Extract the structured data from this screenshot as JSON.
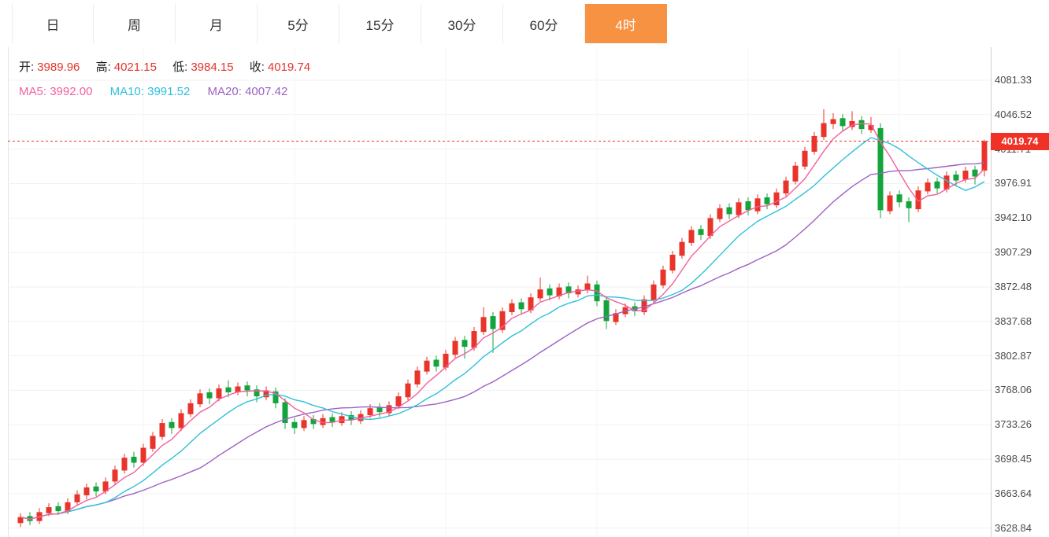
{
  "tabbar": {
    "tabs": [
      {
        "label": "日"
      },
      {
        "label": "周"
      },
      {
        "label": "月"
      },
      {
        "label": "5分"
      },
      {
        "label": "15分"
      },
      {
        "label": "30分"
      },
      {
        "label": "60分"
      },
      {
        "label": "4时"
      }
    ],
    "active": "4时"
  },
  "legend": {
    "ohlc": [
      {
        "label": "开:",
        "value": "3989.96"
      },
      {
        "label": "高:",
        "value": "4021.15"
      },
      {
        "label": "低:",
        "value": "3984.15"
      },
      {
        "label": "收:",
        "value": "4019.74"
      }
    ],
    "ma": [
      {
        "label": "MA5:",
        "value": "3992.00"
      },
      {
        "label": "MA10:",
        "value": "3991.52"
      },
      {
        "label": "MA20:",
        "value": "4007.42"
      }
    ]
  },
  "price_tag": {
    "value": "4019.74"
  },
  "chart_data": {
    "type": "candlestick",
    "timeframe": "4时",
    "up_color": "#e8342a",
    "down_color": "#14a43c",
    "tag_color": "#f03126",
    "grid": true,
    "legend_position": "top-left",
    "ohlc_latest": {
      "open": 3989.96,
      "high": 4021.15,
      "low": 3984.15,
      "close": 4019.74
    },
    "ma_values": {
      "MA5": 3992.0,
      "MA10": 3991.52,
      "MA20": 4007.42
    },
    "ma_colors": {
      "ma5": "#f0609d",
      "ma10": "#2fc0d9",
      "ma20": "#9d62c4"
    },
    "last_price": 4019.74,
    "y_ticks": [
      4081.33,
      4046.52,
      4011.71,
      3976.91,
      3942.1,
      3907.29,
      3872.48,
      3837.68,
      3802.87,
      3768.06,
      3733.26,
      3698.45,
      3663.64,
      3628.84
    ],
    "candles": [
      [
        3634,
        3644,
        3630,
        3640
      ],
      [
        3641,
        3645,
        3632,
        3636
      ],
      [
        3636,
        3649,
        3633,
        3645
      ],
      [
        3644,
        3654,
        3641,
        3650
      ],
      [
        3651,
        3655,
        3642,
        3646
      ],
      [
        3646,
        3659,
        3643,
        3655
      ],
      [
        3655,
        3667,
        3652,
        3663
      ],
      [
        3662,
        3674,
        3658,
        3670
      ],
      [
        3671,
        3675,
        3661,
        3666
      ],
      [
        3666,
        3680,
        3663,
        3676
      ],
      [
        3676,
        3692,
        3673,
        3688
      ],
      [
        3687,
        3704,
        3684,
        3700
      ],
      [
        3701,
        3706,
        3690,
        3695
      ],
      [
        3695,
        3714,
        3692,
        3710
      ],
      [
        3709,
        3726,
        3706,
        3722
      ],
      [
        3721,
        3739,
        3718,
        3735
      ],
      [
        3736,
        3740,
        3724,
        3730
      ],
      [
        3730,
        3749,
        3727,
        3745
      ],
      [
        3744,
        3759,
        3741,
        3755
      ],
      [
        3754,
        3769,
        3751,
        3765
      ],
      [
        3766,
        3770,
        3754,
        3760
      ],
      [
        3760,
        3774,
        3757,
        3770
      ],
      [
        3771,
        3778,
        3761,
        3766
      ],
      [
        3766,
        3776,
        3763,
        3772
      ],
      [
        3773,
        3777,
        3762,
        3768
      ],
      [
        3769,
        3773,
        3756,
        3762
      ],
      [
        3761,
        3772,
        3758,
        3768
      ],
      [
        3767,
        3771,
        3750,
        3755
      ],
      [
        3756,
        3760,
        3729,
        3735
      ],
      [
        3736,
        3740,
        3724,
        3730
      ],
      [
        3730,
        3742,
        3727,
        3738
      ],
      [
        3739,
        3743,
        3729,
        3734
      ],
      [
        3733,
        3744,
        3730,
        3740
      ],
      [
        3741,
        3745,
        3731,
        3736
      ],
      [
        3735,
        3746,
        3732,
        3742
      ],
      [
        3743,
        3747,
        3733,
        3738
      ],
      [
        3737,
        3748,
        3734,
        3744
      ],
      [
        3743,
        3754,
        3740,
        3750
      ],
      [
        3751,
        3755,
        3741,
        3746
      ],
      [
        3745,
        3757,
        3742,
        3753
      ],
      [
        3752,
        3766,
        3749,
        3762
      ],
      [
        3761,
        3779,
        3758,
        3775
      ],
      [
        3774,
        3792,
        3771,
        3788
      ],
      [
        3787,
        3802,
        3784,
        3798
      ],
      [
        3799,
        3803,
        3787,
        3792
      ],
      [
        3791,
        3809,
        3788,
        3805
      ],
      [
        3804,
        3822,
        3801,
        3818
      ],
      [
        3819,
        3823,
        3800,
        3812
      ],
      [
        3811,
        3832,
        3808,
        3828
      ],
      [
        3827,
        3852,
        3824,
        3842
      ],
      [
        3843,
        3847,
        3806,
        3830
      ],
      [
        3829,
        3852,
        3826,
        3848
      ],
      [
        3847,
        3860,
        3844,
        3856
      ],
      [
        3857,
        3861,
        3845,
        3850
      ],
      [
        3849,
        3866,
        3846,
        3862
      ],
      [
        3861,
        3882,
        3858,
        3870
      ],
      [
        3871,
        3875,
        3859,
        3864
      ],
      [
        3863,
        3876,
        3860,
        3872
      ],
      [
        3873,
        3877,
        3861,
        3866
      ],
      [
        3865,
        3874,
        3862,
        3870
      ],
      [
        3869,
        3884,
        3866,
        3876
      ],
      [
        3875,
        3879,
        3853,
        3858
      ],
      [
        3859,
        3863,
        3830,
        3838
      ],
      [
        3837,
        3850,
        3834,
        3846
      ],
      [
        3845,
        3856,
        3842,
        3852
      ],
      [
        3853,
        3857,
        3843,
        3848
      ],
      [
        3847,
        3864,
        3844,
        3860
      ],
      [
        3859,
        3879,
        3856,
        3875
      ],
      [
        3874,
        3894,
        3871,
        3890
      ],
      [
        3889,
        3909,
        3886,
        3905
      ],
      [
        3904,
        3922,
        3901,
        3918
      ],
      [
        3917,
        3934,
        3914,
        3930
      ],
      [
        3931,
        3935,
        3920,
        3925
      ],
      [
        3924,
        3946,
        3921,
        3942
      ],
      [
        3941,
        3956,
        3938,
        3952
      ],
      [
        3953,
        3957,
        3941,
        3946
      ],
      [
        3945,
        3962,
        3942,
        3958
      ],
      [
        3959,
        3963,
        3945,
        3950
      ],
      [
        3949,
        3966,
        3946,
        3962
      ],
      [
        3963,
        3967,
        3951,
        3956
      ],
      [
        3955,
        3972,
        3952,
        3968
      ],
      [
        3967,
        3984,
        3964,
        3980
      ],
      [
        3979,
        3999,
        3976,
        3995
      ],
      [
        3994,
        4014,
        3991,
        4010
      ],
      [
        4009,
        4029,
        4006,
        4025
      ],
      [
        4024,
        4052,
        4021,
        4038
      ],
      [
        4037,
        4048,
        4032,
        4042
      ],
      [
        4043,
        4047,
        4030,
        4035
      ],
      [
        4034,
        4050,
        4031,
        4040
      ],
      [
        4041,
        4045,
        4027,
        4032
      ],
      [
        4031,
        4044,
        4028,
        4036
      ],
      [
        4033,
        4038,
        3942,
        3950
      ],
      [
        3949,
        3969,
        3946,
        3965
      ],
      [
        3966,
        3970,
        3953,
        3958
      ],
      [
        3959,
        3963,
        3938,
        3952
      ],
      [
        3951,
        3974,
        3948,
        3970
      ],
      [
        3969,
        3982,
        3966,
        3978
      ],
      [
        3979,
        3983,
        3967,
        3972
      ],
      [
        3971,
        3989,
        3968,
        3985
      ],
      [
        3986,
        3990,
        3975,
        3980
      ],
      [
        3981,
        3994,
        3978,
        3990
      ],
      [
        3991,
        3995,
        3976,
        3984
      ],
      [
        3989.96,
        4021.15,
        3984.15,
        4019.74
      ]
    ]
  }
}
